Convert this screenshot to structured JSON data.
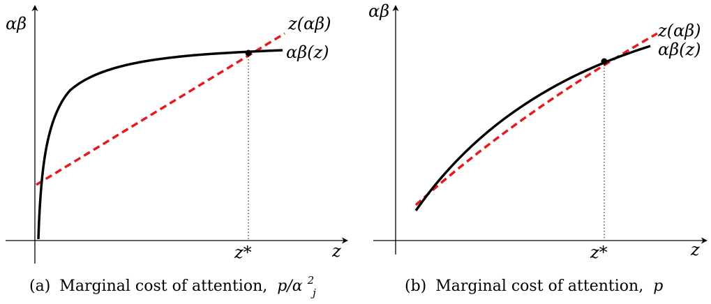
{
  "panels": [
    {
      "y_axis_label": "αβ",
      "x_axis_label": "z",
      "curve_label": "αβ(z)",
      "line_label": "z(αβ)",
      "marker_label": "z*",
      "caption": {
        "prefix": "(a)",
        "text": "Marginal cost of attention, ",
        "math": "p/α",
        "sup": "2",
        "sub": "j"
      },
      "colors": {
        "curve": "#000000",
        "line": "#e8191a"
      }
    },
    {
      "y_axis_label": "αβ",
      "x_axis_label": "z",
      "curve_label": "αβ(z)",
      "line_label": "z(αβ)",
      "marker_label": "z*",
      "caption": {
        "prefix": "(b)",
        "text": "Marginal cost of attention, ",
        "math": "p"
      },
      "colors": {
        "curve": "#000000",
        "line": "#e8191a"
      }
    }
  ]
}
